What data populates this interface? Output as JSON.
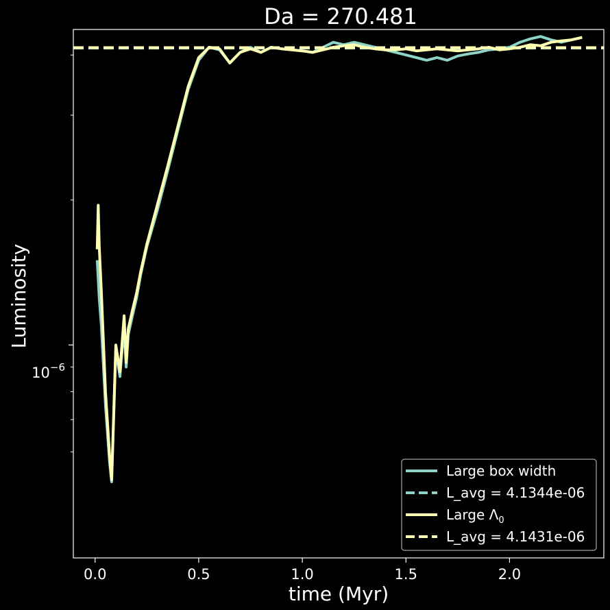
{
  "chart_data": {
    "type": "line",
    "title": "Da = 270.481",
    "xlabel": "time (Myr)",
    "ylabel": "Luminosity",
    "xlim": [
      -0.105,
      2.455
    ],
    "ylim_log10": [
      -6.442,
      -5.345
    ],
    "yscale": "log",
    "x_ticks": [
      0.0,
      0.5,
      1.0,
      1.5,
      2.0
    ],
    "x_tick_labels": [
      "0.0",
      "0.5",
      "1.0",
      "1.5",
      "2.0"
    ],
    "y_major_tick_value": 1e-06,
    "y_major_tick_label_base": "10",
    "y_major_tick_label_exp": "−6",
    "y_minor_ticks": [
      6e-07,
      7e-07,
      8e-07,
      9e-07,
      2e-06,
      3e-06,
      4e-06
    ],
    "grid": false,
    "legend_position": "lower-right",
    "colors": {
      "background": "#000000",
      "axes": "#ffffff",
      "series_box": "#8dd3c7",
      "series_lambda": "#ffffb3"
    },
    "series": [
      {
        "name": "Large box width",
        "style": "solid",
        "color": "#8dd3c7",
        "x": [
          0.01,
          0.02,
          0.03,
          0.05,
          0.07,
          0.08,
          0.1,
          0.12,
          0.14,
          0.15,
          0.16,
          0.18,
          0.2,
          0.22,
          0.25,
          0.3,
          0.35,
          0.4,
          0.45,
          0.5,
          0.55,
          0.6,
          0.65,
          0.7,
          0.75,
          0.8,
          0.85,
          0.9,
          0.95,
          1.0,
          1.05,
          1.1,
          1.15,
          1.2,
          1.25,
          1.3,
          1.35,
          1.4,
          1.45,
          1.5,
          1.55,
          1.6,
          1.65,
          1.7,
          1.75,
          1.8,
          1.85,
          1.9,
          1.95,
          2.0,
          2.05,
          2.1,
          2.15,
          2.2,
          2.25,
          2.3,
          2.35
        ],
        "y": [
          1.5e-06,
          1.25e-06,
          1.1e-06,
          7.5e-07,
          5.7e-07,
          5.2e-07,
          9.8e-07,
          8.6e-07,
          1.1e-06,
          9e-07,
          1.05e-06,
          1.15e-06,
          1.25e-06,
          1.4e-06,
          1.6e-06,
          1.9e-06,
          2.3e-06,
          2.8e-06,
          3.4e-06,
          3.9e-06,
          4.15e-06,
          4.1e-06,
          3.85e-06,
          4.05e-06,
          4.15e-06,
          4.05e-06,
          4.15e-06,
          4.12e-06,
          4.1e-06,
          4.08e-06,
          4.05e-06,
          4.15e-06,
          4.25e-06,
          4.2e-06,
          4.25e-06,
          4.2e-06,
          4.15e-06,
          4.1e-06,
          4.05e-06,
          4e-06,
          3.95e-06,
          3.9e-06,
          3.95e-06,
          3.9e-06,
          3.98e-06,
          4.02e-06,
          4.05e-06,
          4.1e-06,
          4.12e-06,
          4.15e-06,
          4.25e-06,
          4.32e-06,
          4.37e-06,
          4.3e-06,
          4.25e-06,
          4.3e-06,
          4.35e-06
        ]
      },
      {
        "name": "L_avg = 4.1344e-06",
        "style": "dashed",
        "color": "#8dd3c7",
        "constant": 4.1344e-06
      },
      {
        "name_base": "Large Λ",
        "name_sub": "0",
        "style": "solid",
        "color": "#ffffb3",
        "x": [
          0.01,
          0.015,
          0.02,
          0.03,
          0.05,
          0.07,
          0.08,
          0.1,
          0.12,
          0.14,
          0.15,
          0.16,
          0.18,
          0.2,
          0.22,
          0.25,
          0.3,
          0.35,
          0.4,
          0.45,
          0.5,
          0.55,
          0.6,
          0.65,
          0.7,
          0.75,
          0.8,
          0.85,
          0.9,
          0.95,
          1.0,
          1.05,
          1.1,
          1.15,
          1.2,
          1.25,
          1.3,
          1.35,
          1.4,
          1.45,
          1.5,
          1.55,
          1.6,
          1.65,
          1.7,
          1.75,
          1.8,
          1.85,
          1.9,
          1.95,
          2.0,
          2.05,
          2.1,
          2.15,
          2.2,
          2.25,
          2.3,
          2.35
        ],
        "y": [
          1.58e-06,
          1.95e-06,
          1.6e-06,
          1.3e-06,
          8e-07,
          5.9e-07,
          5.25e-07,
          1e-06,
          8.8e-07,
          1.15e-06,
          9.2e-07,
          1.08e-06,
          1.18e-06,
          1.28e-06,
          1.42e-06,
          1.62e-06,
          1.95e-06,
          2.35e-06,
          2.85e-06,
          3.45e-06,
          3.95e-06,
          4.15e-06,
          4.12e-06,
          3.85e-06,
          4.05e-06,
          4.12e-06,
          4.05e-06,
          4.15e-06,
          4.12e-06,
          4.1e-06,
          4.08e-06,
          4.05e-06,
          4.1e-06,
          4.15e-06,
          4.18e-06,
          4.2e-06,
          4.15e-06,
          4.12e-06,
          4.1e-06,
          4.1e-06,
          4.12e-06,
          4.08e-06,
          4.1e-06,
          4.12e-06,
          4.1e-06,
          4.08e-06,
          4.1e-06,
          4.12e-06,
          4.15e-06,
          4.1e-06,
          4.12e-06,
          4.15e-06,
          4.2e-06,
          4.18e-06,
          4.25e-06,
          4.28e-06,
          4.3e-06,
          4.35e-06
        ]
      },
      {
        "name": "L_avg = 4.1431e-06",
        "style": "dashed",
        "color": "#ffffb3",
        "constant": 4.1431e-06
      }
    ]
  }
}
